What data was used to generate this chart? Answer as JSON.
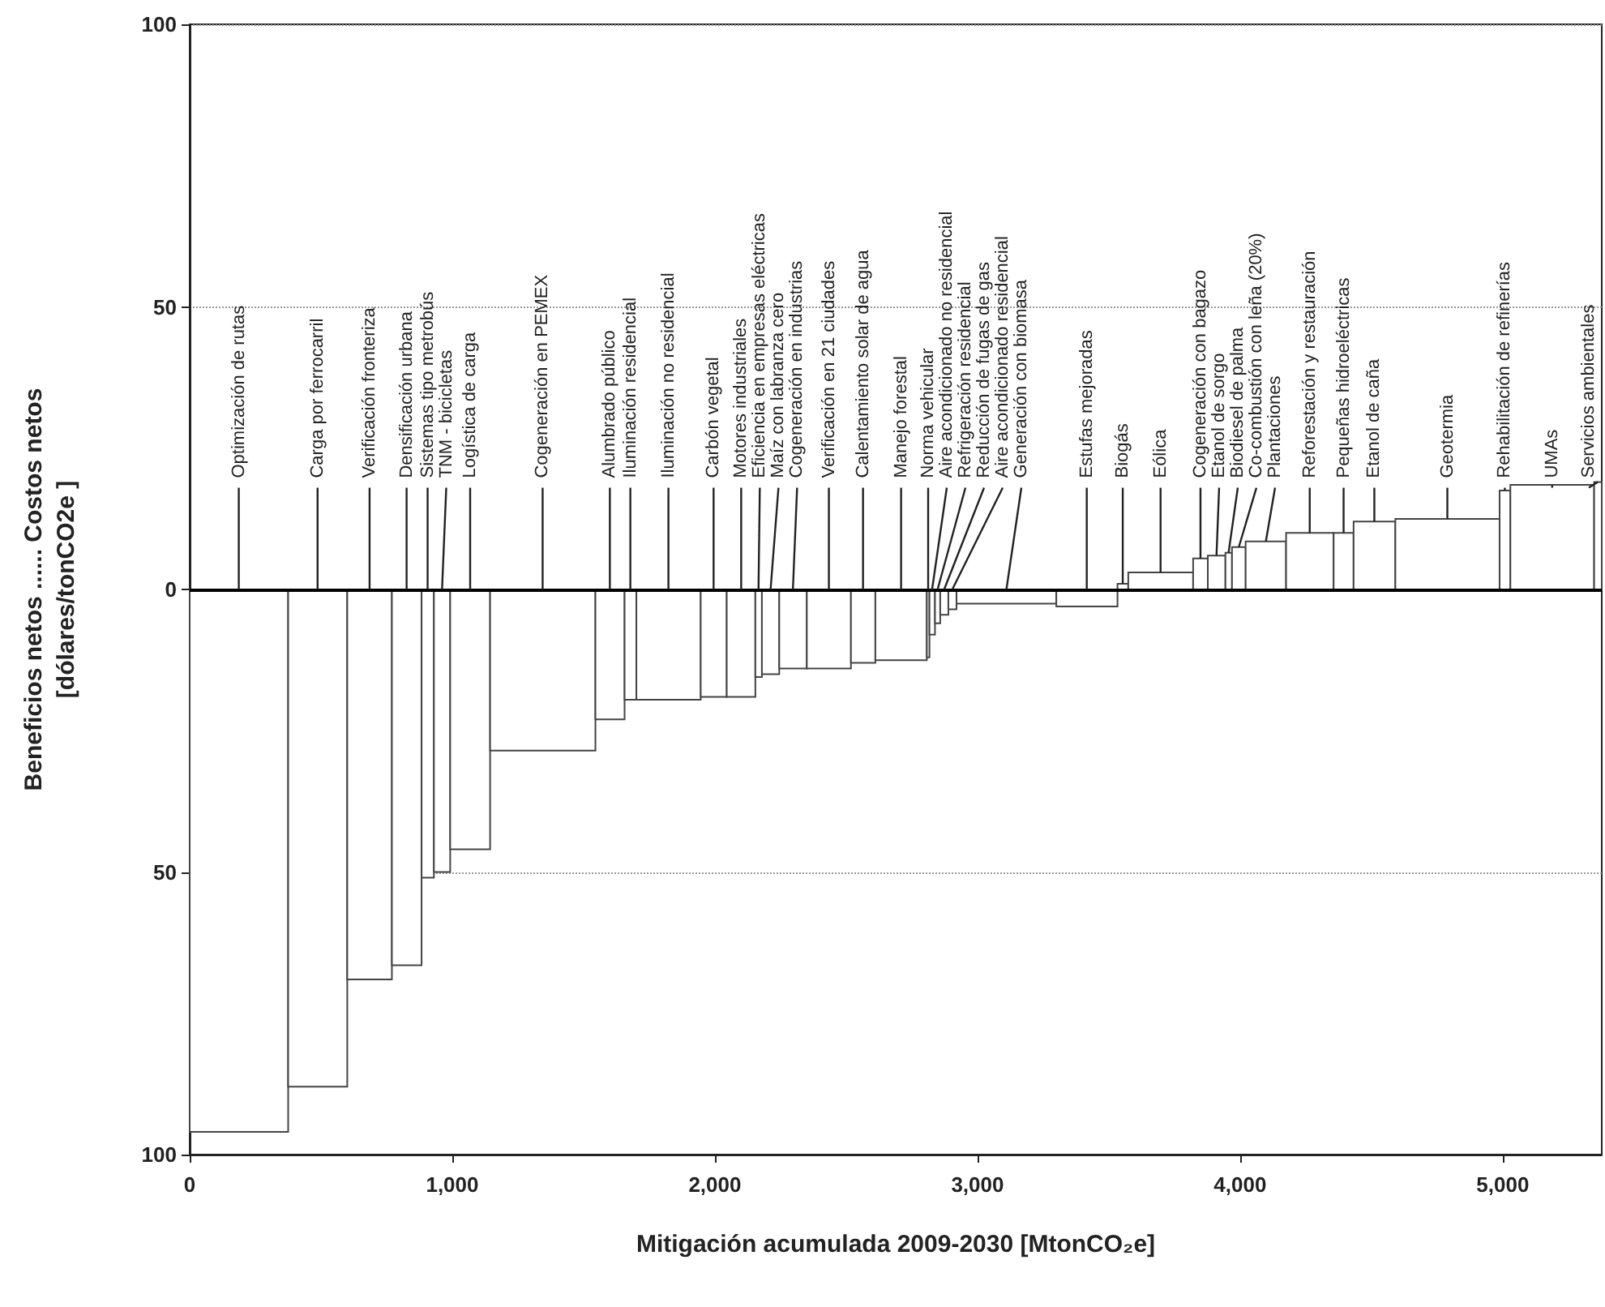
{
  "chart_data": {
    "type": "histogram",
    "xlabel": "Mitigación acumulada 2009-2030 [MtonCO₂e]",
    "ylabel": "Beneficios netos ...... Costos netos\n[dólares/tonCO2e ]",
    "bins": [
      0,
      375,
      600,
      770,
      883,
      930,
      992,
      1144,
      1545,
      1656,
      1701,
      1946,
      2045,
      2154,
      2179,
      2245,
      2350,
      2518,
      2611,
      2807,
      2817,
      2838,
      2858,
      2889,
      2920,
      3300,
      3533,
      3574,
      3821,
      3877,
      3944,
      3969,
      4021,
      4175,
      4356,
      4432,
      4591,
      4988,
      5029,
      5348,
      5377
    ],
    "values": [
      -96,
      -88,
      -69,
      -66.5,
      -51,
      -50,
      -46,
      -28.5,
      -23,
      -19.5,
      -19.5,
      -19,
      -19,
      -15.5,
      -15,
      -14,
      -14,
      -13,
      -12.5,
      -12,
      -8,
      -6,
      -4.5,
      -3.5,
      -2.5,
      -3,
      1,
      3,
      5.5,
      6,
      6.5,
      7.5,
      8.5,
      10,
      10,
      12,
      12.5,
      17.5,
      18.5,
      19
    ],
    "xlim": [
      0,
      5377
    ],
    "xticks": [
      0,
      {
        "value": 1000,
        "label": "1,000"
      },
      {
        "value": 2000,
        "label": "2,000"
      },
      {
        "value": 3000,
        "label": "3,000"
      },
      {
        "value": 4000,
        "label": "4,000"
      },
      {
        "value": 5000,
        "label": "5,000"
      }
    ],
    "ylim": [
      -100,
      100
    ],
    "yticks": [
      {
        "value": -100,
        "label": "100"
      },
      {
        "value": -50,
        "label": "50"
      },
      0,
      50,
      100
    ],
    "grid": "y",
    "ref_lines": [
      {
        "axis": "y",
        "value": 0
      }
    ],
    "annotations": [
      {
        "text": "Optimización de rutas",
        "x": 187,
        "y": 0
      },
      {
        "text": "Carga por ferrocarril",
        "x": 487,
        "y": 0
      },
      {
        "text": "Verificación fronteriza",
        "x": 685,
        "y": 0
      },
      {
        "text": "Densificación urbana",
        "x": 826,
        "y": 0
      },
      {
        "text": "Sistemas tipo metrobús",
        "x": 906,
        "y": 0
      },
      {
        "text": "TNM - bicicletas",
        "x": 961,
        "y": 0
      },
      {
        "text": "Logística de carga",
        "x": 1068,
        "y": 0
      },
      {
        "text": "Cogeneración en PEMEX",
        "x": 1344,
        "y": 0
      },
      {
        "text": "Alumbrado público",
        "x": 1600,
        "y": 0
      },
      {
        "text": "Iluminación residencial",
        "x": 1678,
        "y": 0
      },
      {
        "text": "Iluminación no residencial",
        "x": 1823,
        "y": 0
      },
      {
        "text": "Carbón vegetal",
        "x": 1995,
        "y": 0
      },
      {
        "text": "Motores industriales",
        "x": 2100,
        "y": 0
      },
      {
        "text": "Eficiencia en empresas eléctricas",
        "x": 2166,
        "y": 0
      },
      {
        "text": "Maíz con labranza cero",
        "x": 2212,
        "y": 0
      },
      {
        "text": "Cogeneración en industrias",
        "x": 2297,
        "y": 0
      },
      {
        "text": "Verificación en 21 ciudades",
        "x": 2434,
        "y": 0
      },
      {
        "text": "Calentamiento solar de agua",
        "x": 2564,
        "y": 0
      },
      {
        "text": "Manejo forestal",
        "x": 2709,
        "y": 0
      },
      {
        "text": "Norma vehicular",
        "x": 2812,
        "y": 0
      },
      {
        "text": "Aire acondicionado no residencial",
        "x": 2827,
        "y": 0
      },
      {
        "text": "Refrigeración residencial",
        "x": 2848,
        "y": 0
      },
      {
        "text": "Reducción de fugas de gas",
        "x": 2873,
        "y": 0
      },
      {
        "text": "Aire acondicionado residencial",
        "x": 2904,
        "y": 0
      },
      {
        "text": "Generación con biomasa",
        "x": 3110,
        "y": 0
      },
      {
        "text": "Estufas mejoradas",
        "x": 3416,
        "y": 0
      },
      {
        "text": "Biogás",
        "x": 3553,
        "y": 1
      },
      {
        "text": "Eólica",
        "x": 3697,
        "y": 3
      },
      {
        "text": "Cogeneración con bagazo",
        "x": 3849,
        "y": 5.5
      },
      {
        "text": "Etanol de sorgo",
        "x": 3910,
        "y": 6
      },
      {
        "text": "Biodiesel de palma",
        "x": 3956,
        "y": 6.5
      },
      {
        "text": "Co-combustión con leña (20%)",
        "x": 3995,
        "y": 7.5
      },
      {
        "text": "Plantaciones",
        "x": 4098,
        "y": 8.5
      },
      {
        "text": "Reforestación y restauración",
        "x": 4265,
        "y": 10
      },
      {
        "text": "Pequeñas hidroeléctricas",
        "x": 4394,
        "y": 10
      },
      {
        "text": "Etanol de caña",
        "x": 4511,
        "y": 12
      },
      {
        "text": "Geotermia",
        "x": 4789,
        "y": 12.5
      },
      {
        "text": "Rehabilitación de refinerías",
        "x": 5008,
        "y": 17.5
      },
      {
        "text": "UMAs",
        "x": 5188,
        "y": 18.5
      },
      {
        "text": "Servicios ambientales",
        "x": 5362,
        "y": 19
      }
    ]
  }
}
